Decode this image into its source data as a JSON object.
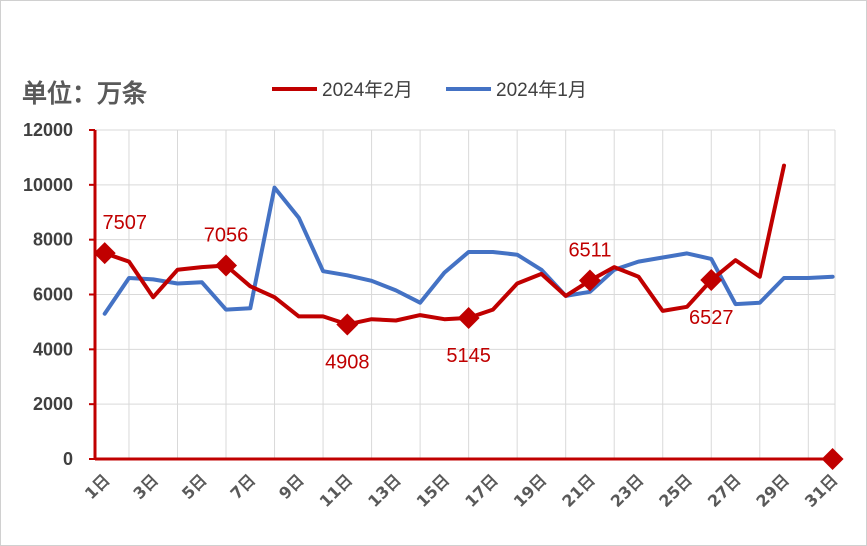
{
  "chart_data": {
    "type": "line",
    "unit_label": "单位：万条",
    "x_categories": [
      "1日",
      "2日",
      "3日",
      "4日",
      "5日",
      "6日",
      "7日",
      "8日",
      "9日",
      "10日",
      "11日",
      "12日",
      "13日",
      "14日",
      "15日",
      "16日",
      "17日",
      "18日",
      "19日",
      "20日",
      "21日",
      "22日",
      "23日",
      "24日",
      "25日",
      "26日",
      "27日",
      "28日",
      "29日",
      "30日",
      "31日"
    ],
    "x_tick_labels": [
      "1日",
      "3日",
      "5日",
      "7日",
      "9日",
      "11日",
      "13日",
      "15日",
      "17日",
      "19日",
      "21日",
      "23日",
      "25日",
      "27日",
      "29日",
      "31日"
    ],
    "ylim": [
      0,
      12000
    ],
    "yticks": [
      0,
      2000,
      4000,
      6000,
      8000,
      10000,
      12000
    ],
    "grid": true,
    "legend_position": "top",
    "series": [
      {
        "name": "2024年2月",
        "color": "#c00000",
        "values": [
          7507,
          7200,
          5900,
          6900,
          7000,
          7056,
          6300,
          5900,
          5200,
          5200,
          4908,
          5100,
          5050,
          5250,
          5100,
          5145,
          5450,
          6400,
          6750,
          5950,
          6511,
          7000,
          6650,
          5400,
          5550,
          6527,
          7250,
          6650,
          10700,
          null,
          0
        ]
      },
      {
        "name": "2024年1月",
        "color": "#4472c4",
        "values": [
          5300,
          6600,
          6550,
          6400,
          6450,
          5450,
          5500,
          9900,
          8800,
          6850,
          6700,
          6500,
          6150,
          5700,
          6800,
          7550,
          7550,
          7450,
          6900,
          5950,
          6100,
          6900,
          7200,
          7350,
          7500,
          7300,
          5650,
          5700,
          6600,
          6600,
          6650
        ]
      }
    ],
    "annotations": [
      {
        "x": "1日",
        "value": 7507,
        "label": "7507",
        "pos": "above"
      },
      {
        "x": "6日",
        "value": 7056,
        "label": "7056",
        "pos": "above"
      },
      {
        "x": "11日",
        "value": 4908,
        "label": "4908",
        "pos": "below"
      },
      {
        "x": "16日",
        "value": 5145,
        "label": "5145",
        "pos": "below"
      },
      {
        "x": "21日",
        "value": 6511,
        "label": "6511",
        "pos": "above"
      },
      {
        "x": "26日",
        "value": 6527,
        "label": "6527",
        "pos": "below"
      },
      {
        "x": "31日",
        "value": 0,
        "label": "",
        "pos": "none"
      }
    ]
  }
}
